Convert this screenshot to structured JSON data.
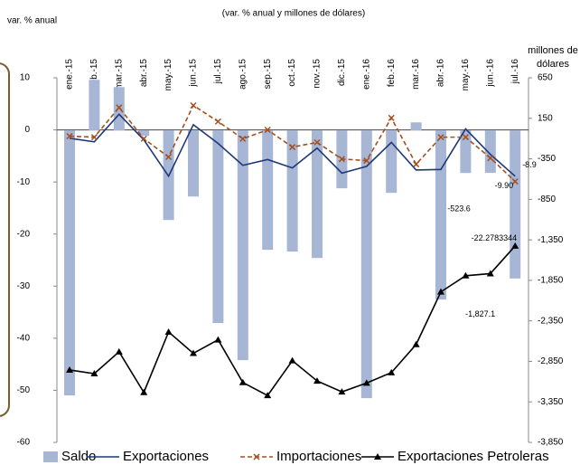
{
  "chart_data": {
    "type": "combo",
    "title": "(var. % anual y millones de dólares)",
    "ylabel": "var. % anual",
    "y2label": [
      "millones de",
      "dólares"
    ],
    "categories": [
      "ene.-15",
      "feb.-15",
      "mar.-15",
      "abr.-15",
      "may.-15",
      "jun.-15",
      "jul.-15",
      "ago.-15",
      "sep.-15",
      "oct.-15",
      "nov.-15",
      "dic.-15",
      "ene.-16",
      "feb.-16",
      "mar.-16",
      "abr.-16",
      "may.-16",
      "jun.-16",
      "jul.-16"
    ],
    "ylim": [
      -60,
      10
    ],
    "yticks": [
      10,
      0,
      -10,
      -20,
      -30,
      -40,
      -50,
      -60
    ],
    "y2lim": [
      -3850,
      650
    ],
    "y2ticks": [
      650,
      150,
      -350,
      -850,
      {
        "value": -1350,
        "label": "-1,350"
      },
      {
        "value": -1850,
        "label": "-1,850"
      },
      {
        "value": -2350,
        "label": "-2,350"
      },
      {
        "value": -2850,
        "label": "-2,850"
      },
      {
        "value": -3350,
        "label": "-3,350"
      },
      {
        "value": -3850,
        "label": "-3,850"
      }
    ],
    "series": [
      {
        "name": "Saldo",
        "kind": "bar",
        "axis": "y2",
        "color": "#a7b6d4",
        "values": [
          -3270,
          625,
          535,
          -67,
          -1105,
          -815,
          -2377,
          -2835,
          -1473,
          -1495,
          -1574,
          -714,
          -3304,
          -770,
          100,
          -2087,
          -525,
          -523.6,
          -1827.1
        ],
        "value_labels": [
          null,
          null,
          null,
          null,
          null,
          null,
          null,
          null,
          null,
          null,
          null,
          null,
          null,
          null,
          null,
          null,
          null,
          "-523.6",
          "-1,827.1"
        ]
      },
      {
        "name": "Exportaciones",
        "kind": "line",
        "color": "#1f3877",
        "values": [
          -1.6,
          -2.3,
          3.0,
          -1.9,
          -8.9,
          1.0,
          -2.6,
          -6.8,
          -5.7,
          -7.3,
          -3.5,
          -8.3,
          -7.0,
          -2.4,
          -7.7,
          -7.6,
          0.2,
          -4.7,
          -8.9
        ],
        "value_labels": [
          null,
          null,
          null,
          null,
          null,
          null,
          null,
          null,
          null,
          null,
          null,
          null,
          null,
          null,
          null,
          null,
          null,
          null,
          "-8.9"
        ]
      },
      {
        "name": "Importaciones",
        "kind": "dashed-x",
        "color": "#a3501f",
        "values": [
          -1.2,
          -1.4,
          4.3,
          -1.7,
          -5.2,
          4.7,
          1.6,
          -1.7,
          0,
          -3.3,
          -2.4,
          -5.6,
          -5.9,
          2.3,
          -6.6,
          -1.4,
          -1.4,
          -5.4,
          -9.9
        ],
        "value_labels": [
          null,
          null,
          null,
          null,
          null,
          null,
          null,
          null,
          null,
          null,
          null,
          null,
          null,
          null,
          null,
          null,
          null,
          null,
          "-9.90"
        ]
      },
      {
        "name": "Exportaciones Petroleras",
        "kind": "line-triangle",
        "color": "#000000",
        "values": [
          -46.1,
          -46.8,
          -42.6,
          -50.4,
          -38.8,
          -42.9,
          -40.3,
          -48.5,
          -51.0,
          -44.3,
          -48.2,
          -50.3,
          -48.6,
          -46.6,
          -41.2,
          -31.1,
          -28.0,
          -27.6,
          -22.2783344
        ],
        "value_labels": [
          null,
          null,
          null,
          null,
          null,
          null,
          null,
          null,
          null,
          null,
          null,
          null,
          null,
          null,
          null,
          null,
          null,
          null,
          "-22.2783344"
        ]
      }
    ]
  }
}
